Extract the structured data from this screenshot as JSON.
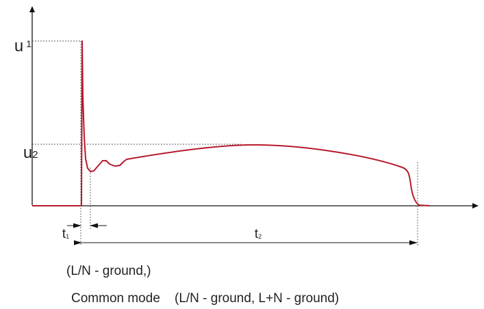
{
  "labels": {
    "u1": {
      "symbol": "u",
      "subscript": "1"
    },
    "u2": {
      "symbol": "u",
      "subscript": "2"
    },
    "t1": {
      "symbol": "t",
      "subscript": "1"
    },
    "t2": {
      "symbol": "t",
      "subscript": "2"
    }
  },
  "captions": {
    "line1": "(L/N - ground,)",
    "line2": "Common mode    (L/N - ground, L+N - ground)"
  },
  "colors": {
    "waveform": "#b5192a",
    "axes": "#111111",
    "guides": "#555555"
  },
  "icons": {
    "axis-arrow": "arrowhead",
    "dimension-arrow": "arrowhead"
  }
}
